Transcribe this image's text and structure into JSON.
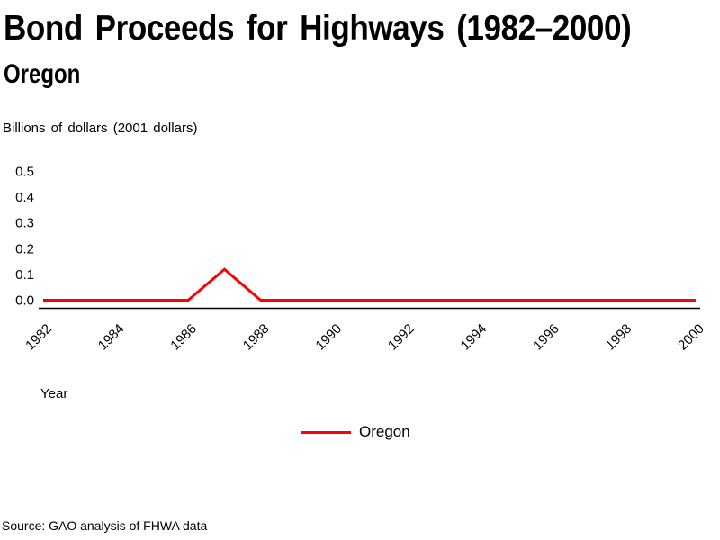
{
  "page": {
    "title": "Bond Proceeds for Highways (1982–2000)",
    "subtitle": "Oregon",
    "axis_unit_label": "Billions of dollars (2001 dollars)",
    "x_axis_title": "Year",
    "source_note": "Source: GAO analysis of FHWA data",
    "background_color": "#ffffff",
    "text_color": "#000000"
  },
  "legend": {
    "items": [
      {
        "label": "Oregon",
        "color": "#ff0000"
      }
    ]
  },
  "chart_data": {
    "type": "line",
    "title": "Bond Proceeds for Highways (1982–2000)",
    "subtitle": "Oregon",
    "ylabel": "Billions of dollars (2001 dollars)",
    "xlabel": "Year",
    "x": [
      1982,
      1983,
      1984,
      1985,
      1986,
      1987,
      1988,
      1989,
      1990,
      1991,
      1992,
      1993,
      1994,
      1995,
      1996,
      1997,
      1998,
      1999,
      2000
    ],
    "series": [
      {
        "name": "Oregon",
        "color": "#ff0000",
        "values": [
          0,
          0,
          0,
          0,
          0,
          0.12,
          0,
          0,
          0,
          0,
          0,
          0,
          0,
          0,
          0,
          0,
          0,
          0,
          0
        ]
      }
    ],
    "x_ticks": [
      1982,
      1984,
      1986,
      1988,
      1990,
      1992,
      1994,
      1996,
      1998,
      2000
    ],
    "y_ticks": [
      0.0,
      0.1,
      0.2,
      0.3,
      0.4,
      0.5
    ],
    "xlim": [
      1982,
      2000
    ],
    "ylim": [
      0,
      0.5
    ],
    "grid": false,
    "legend_position": "bottom-center",
    "axis_color": "#000000"
  }
}
